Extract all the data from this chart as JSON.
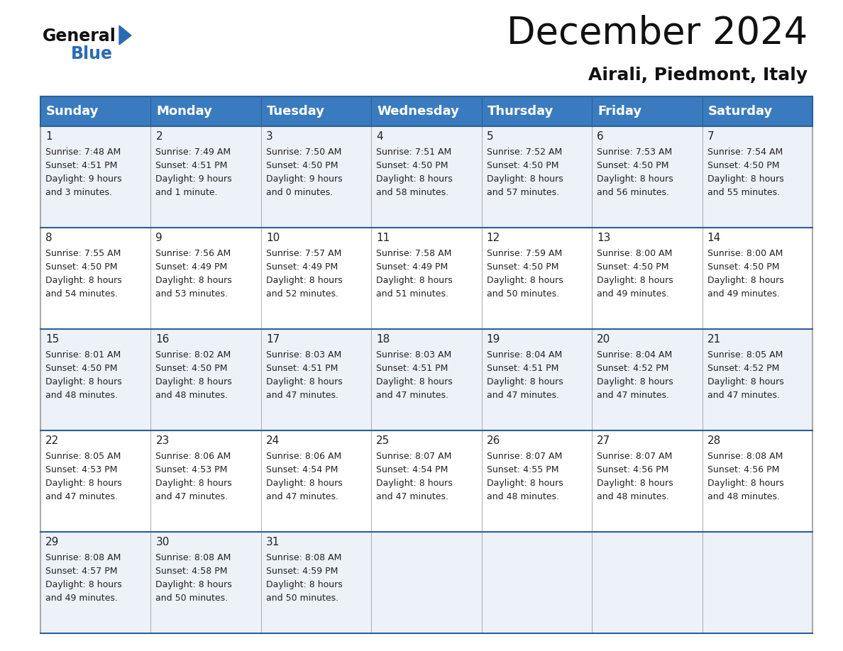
{
  "title": "December 2024",
  "subtitle": "Airali, Piedmont, Italy",
  "header_bg_color": "#3a7bbf",
  "header_text_color": "#ffffff",
  "grid_line_color": "#2a6099",
  "text_color": "#222222",
  "row_colors": [
    "#edf2f8",
    "#ffffff",
    "#edf2f8",
    "#ffffff",
    "#edf2f8"
  ],
  "days_of_week": [
    "Sunday",
    "Monday",
    "Tuesday",
    "Wednesday",
    "Thursday",
    "Friday",
    "Saturday"
  ],
  "calendar_data": [
    {
      "day": 1,
      "col": 0,
      "row": 0,
      "sunrise": "7:48 AM",
      "sunset": "4:51 PM",
      "daylight_a": "9 hours",
      "daylight_b": "and 3 minutes."
    },
    {
      "day": 2,
      "col": 1,
      "row": 0,
      "sunrise": "7:49 AM",
      "sunset": "4:51 PM",
      "daylight_a": "9 hours",
      "daylight_b": "and 1 minute."
    },
    {
      "day": 3,
      "col": 2,
      "row": 0,
      "sunrise": "7:50 AM",
      "sunset": "4:50 PM",
      "daylight_a": "9 hours",
      "daylight_b": "and 0 minutes."
    },
    {
      "day": 4,
      "col": 3,
      "row": 0,
      "sunrise": "7:51 AM",
      "sunset": "4:50 PM",
      "daylight_a": "8 hours",
      "daylight_b": "and 58 minutes."
    },
    {
      "day": 5,
      "col": 4,
      "row": 0,
      "sunrise": "7:52 AM",
      "sunset": "4:50 PM",
      "daylight_a": "8 hours",
      "daylight_b": "and 57 minutes."
    },
    {
      "day": 6,
      "col": 5,
      "row": 0,
      "sunrise": "7:53 AM",
      "sunset": "4:50 PM",
      "daylight_a": "8 hours",
      "daylight_b": "and 56 minutes."
    },
    {
      "day": 7,
      "col": 6,
      "row": 0,
      "sunrise": "7:54 AM",
      "sunset": "4:50 PM",
      "daylight_a": "8 hours",
      "daylight_b": "and 55 minutes."
    },
    {
      "day": 8,
      "col": 0,
      "row": 1,
      "sunrise": "7:55 AM",
      "sunset": "4:50 PM",
      "daylight_a": "8 hours",
      "daylight_b": "and 54 minutes."
    },
    {
      "day": 9,
      "col": 1,
      "row": 1,
      "sunrise": "7:56 AM",
      "sunset": "4:49 PM",
      "daylight_a": "8 hours",
      "daylight_b": "and 53 minutes."
    },
    {
      "day": 10,
      "col": 2,
      "row": 1,
      "sunrise": "7:57 AM",
      "sunset": "4:49 PM",
      "daylight_a": "8 hours",
      "daylight_b": "and 52 minutes."
    },
    {
      "day": 11,
      "col": 3,
      "row": 1,
      "sunrise": "7:58 AM",
      "sunset": "4:49 PM",
      "daylight_a": "8 hours",
      "daylight_b": "and 51 minutes."
    },
    {
      "day": 12,
      "col": 4,
      "row": 1,
      "sunrise": "7:59 AM",
      "sunset": "4:50 PM",
      "daylight_a": "8 hours",
      "daylight_b": "and 50 minutes."
    },
    {
      "day": 13,
      "col": 5,
      "row": 1,
      "sunrise": "8:00 AM",
      "sunset": "4:50 PM",
      "daylight_a": "8 hours",
      "daylight_b": "and 49 minutes."
    },
    {
      "day": 14,
      "col": 6,
      "row": 1,
      "sunrise": "8:00 AM",
      "sunset": "4:50 PM",
      "daylight_a": "8 hours",
      "daylight_b": "and 49 minutes."
    },
    {
      "day": 15,
      "col": 0,
      "row": 2,
      "sunrise": "8:01 AM",
      "sunset": "4:50 PM",
      "daylight_a": "8 hours",
      "daylight_b": "and 48 minutes."
    },
    {
      "day": 16,
      "col": 1,
      "row": 2,
      "sunrise": "8:02 AM",
      "sunset": "4:50 PM",
      "daylight_a": "8 hours",
      "daylight_b": "and 48 minutes."
    },
    {
      "day": 17,
      "col": 2,
      "row": 2,
      "sunrise": "8:03 AM",
      "sunset": "4:51 PM",
      "daylight_a": "8 hours",
      "daylight_b": "and 47 minutes."
    },
    {
      "day": 18,
      "col": 3,
      "row": 2,
      "sunrise": "8:03 AM",
      "sunset": "4:51 PM",
      "daylight_a": "8 hours",
      "daylight_b": "and 47 minutes."
    },
    {
      "day": 19,
      "col": 4,
      "row": 2,
      "sunrise": "8:04 AM",
      "sunset": "4:51 PM",
      "daylight_a": "8 hours",
      "daylight_b": "and 47 minutes."
    },
    {
      "day": 20,
      "col": 5,
      "row": 2,
      "sunrise": "8:04 AM",
      "sunset": "4:52 PM",
      "daylight_a": "8 hours",
      "daylight_b": "and 47 minutes."
    },
    {
      "day": 21,
      "col": 6,
      "row": 2,
      "sunrise": "8:05 AM",
      "sunset": "4:52 PM",
      "daylight_a": "8 hours",
      "daylight_b": "and 47 minutes."
    },
    {
      "day": 22,
      "col": 0,
      "row": 3,
      "sunrise": "8:05 AM",
      "sunset": "4:53 PM",
      "daylight_a": "8 hours",
      "daylight_b": "and 47 minutes."
    },
    {
      "day": 23,
      "col": 1,
      "row": 3,
      "sunrise": "8:06 AM",
      "sunset": "4:53 PM",
      "daylight_a": "8 hours",
      "daylight_b": "and 47 minutes."
    },
    {
      "day": 24,
      "col": 2,
      "row": 3,
      "sunrise": "8:06 AM",
      "sunset": "4:54 PM",
      "daylight_a": "8 hours",
      "daylight_b": "and 47 minutes."
    },
    {
      "day": 25,
      "col": 3,
      "row": 3,
      "sunrise": "8:07 AM",
      "sunset": "4:54 PM",
      "daylight_a": "8 hours",
      "daylight_b": "and 47 minutes."
    },
    {
      "day": 26,
      "col": 4,
      "row": 3,
      "sunrise": "8:07 AM",
      "sunset": "4:55 PM",
      "daylight_a": "8 hours",
      "daylight_b": "and 48 minutes."
    },
    {
      "day": 27,
      "col": 5,
      "row": 3,
      "sunrise": "8:07 AM",
      "sunset": "4:56 PM",
      "daylight_a": "8 hours",
      "daylight_b": "and 48 minutes."
    },
    {
      "day": 28,
      "col": 6,
      "row": 3,
      "sunrise": "8:08 AM",
      "sunset": "4:56 PM",
      "daylight_a": "8 hours",
      "daylight_b": "and 48 minutes."
    },
    {
      "day": 29,
      "col": 0,
      "row": 4,
      "sunrise": "8:08 AM",
      "sunset": "4:57 PM",
      "daylight_a": "8 hours",
      "daylight_b": "and 49 minutes."
    },
    {
      "day": 30,
      "col": 1,
      "row": 4,
      "sunrise": "8:08 AM",
      "sunset": "4:58 PM",
      "daylight_a": "8 hours",
      "daylight_b": "and 50 minutes."
    },
    {
      "day": 31,
      "col": 2,
      "row": 4,
      "sunrise": "8:08 AM",
      "sunset": "4:59 PM",
      "daylight_a": "8 hours",
      "daylight_b": "and 50 minutes."
    }
  ]
}
